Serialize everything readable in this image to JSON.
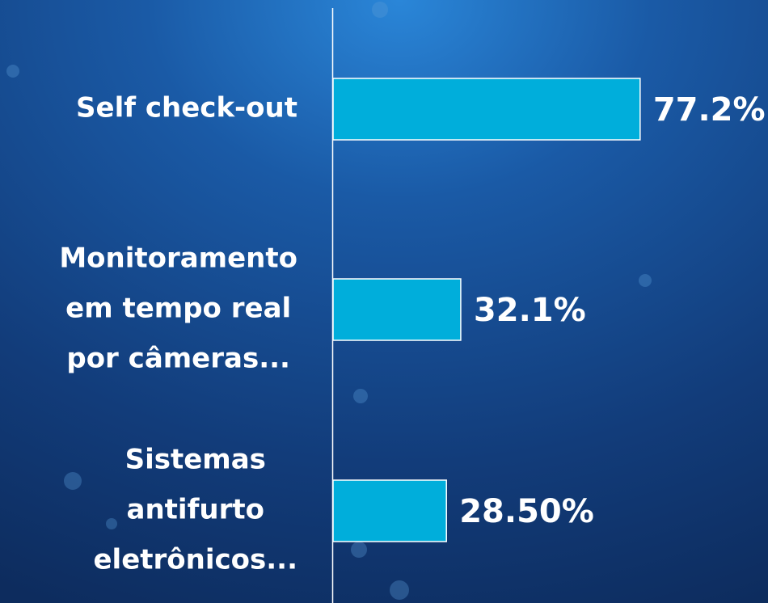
{
  "chart_data": {
    "type": "barh",
    "categories": [
      [
        "Self check-out"
      ],
      [
        "Monitoramento",
        "em tempo real",
        "por câmeras..."
      ],
      [
        "Sistemas",
        "antifurto",
        "eletrônicos..."
      ]
    ],
    "values": [
      77.2,
      32.1,
      28.5
    ],
    "value_labels": [
      "77.2%",
      "32.1%",
      "28.50%"
    ],
    "color": "#00aedb",
    "xlim": [
      0,
      100
    ]
  }
}
